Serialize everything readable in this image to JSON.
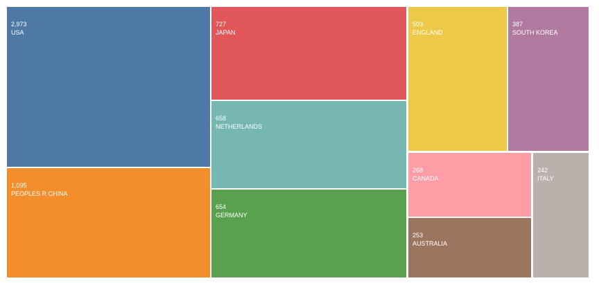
{
  "chart_data": {
    "type": "treemap",
    "title": "",
    "items": [
      {
        "label": "USA",
        "value": 2973,
        "display": "2,973",
        "color": "#4e79a7"
      },
      {
        "label": "PEOPLES R CHINA",
        "value": 1095,
        "display": "1,095",
        "color": "#f28e2b"
      },
      {
        "label": "JAPAN",
        "value": 727,
        "display": "727",
        "color": "#e15759"
      },
      {
        "label": "NETHERLANDS",
        "value": 658,
        "display": "658",
        "color": "#76b7b2"
      },
      {
        "label": "GERMANY",
        "value": 654,
        "display": "654",
        "color": "#59a14f"
      },
      {
        "label": "ENGLAND",
        "value": 503,
        "display": "503",
        "color": "#edc948"
      },
      {
        "label": "SOUTH KOREA",
        "value": 387,
        "display": "387",
        "color": "#b07aa1"
      },
      {
        "label": "CANADA",
        "value": 268,
        "display": "268",
        "color": "#ff9da7"
      },
      {
        "label": "AUSTRALIA",
        "value": 253,
        "display": "253",
        "color": "#9c755f"
      },
      {
        "label": "ITALY",
        "value": 242,
        "display": "242",
        "color": "#bab0ac"
      }
    ]
  }
}
